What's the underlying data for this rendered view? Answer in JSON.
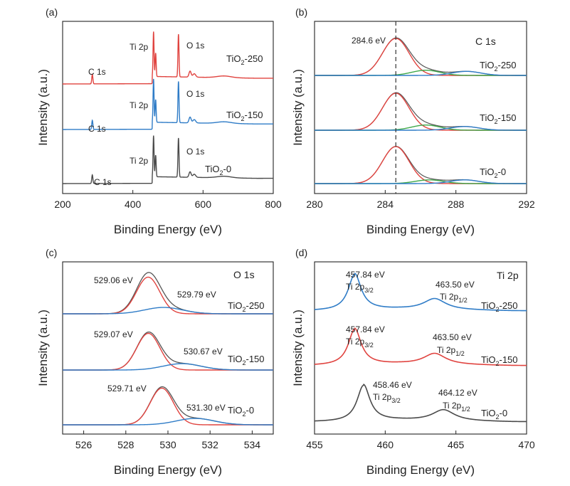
{
  "chart_data": [
    {
      "id": "a",
      "panel_label": "(a)",
      "type": "line",
      "title": "",
      "xlabel": "Binding Energy (eV)",
      "ylabel": "Intensity (a.u.)",
      "xlim": [
        200,
        800
      ],
      "xticks": [
        "200",
        "400",
        "600",
        "800"
      ],
      "series": [
        {
          "name": "TiO2-250",
          "label": "TiO",
          "label_sub": "2",
          "label_rest": "-250",
          "color": "#e0433f",
          "peaks": [
            {
              "label": "C 1s",
              "x": 284.6
            },
            {
              "label": "Ti 2p",
              "x": 459
            },
            {
              "label": "O 1s",
              "x": 530
            }
          ]
        },
        {
          "name": "TiO2-150",
          "label": "TiO",
          "label_sub": "2",
          "label_rest": "-150",
          "color": "#2f7cc7",
          "peaks": [
            {
              "label": "C 1s",
              "x": 284.6
            },
            {
              "label": "Ti 2p",
              "x": 459
            },
            {
              "label": "O 1s",
              "x": 530
            }
          ]
        },
        {
          "name": "TiO2-0",
          "label": "TiO",
          "label_sub": "2",
          "label_rest": "-0",
          "color": "#4a4a4a",
          "peaks": [
            {
              "label": "C 1s",
              "x": 284.6
            },
            {
              "label": "Ti 2p",
              "x": 459
            },
            {
              "label": "O 1s",
              "x": 530
            }
          ]
        }
      ]
    },
    {
      "id": "b",
      "panel_label": "(b)",
      "type": "line",
      "title": "C 1s",
      "xlabel": "Binding Energy (eV)",
      "ylabel": "Intensity (a.u.)",
      "xlim": [
        280,
        292
      ],
      "xticks": [
        "280",
        "284",
        "288",
        "292"
      ],
      "reference_line": {
        "x": 284.6,
        "label": "284.6 eV"
      },
      "series": [
        {
          "name": "TiO2-250",
          "label": "TiO",
          "label_sub": "2",
          "label_rest": "-250",
          "components": [
            {
              "center": 284.6,
              "amp": 1.0,
              "color": "#e0433f"
            },
            {
              "center": 286.3,
              "amp": 0.14,
              "color": "#3fa84a"
            },
            {
              "center": 288.6,
              "amp": 0.11,
              "color": "#2f7cc7"
            }
          ]
        },
        {
          "name": "TiO2-150",
          "label": "TiO",
          "label_sub": "2",
          "label_rest": "-150",
          "components": [
            {
              "center": 284.6,
              "amp": 1.0,
              "color": "#e0433f"
            },
            {
              "center": 286.3,
              "amp": 0.14,
              "color": "#3fa84a"
            },
            {
              "center": 288.5,
              "amp": 0.1,
              "color": "#2f7cc7"
            }
          ]
        },
        {
          "name": "TiO2-0",
          "label": "TiO",
          "label_sub": "2",
          "label_rest": "-0",
          "components": [
            {
              "center": 284.6,
              "amp": 1.0,
              "color": "#e0433f"
            },
            {
              "center": 286.5,
              "amp": 0.1,
              "color": "#3fa84a"
            },
            {
              "center": 288.5,
              "amp": 0.1,
              "color": "#2f7cc7"
            }
          ]
        }
      ]
    },
    {
      "id": "c",
      "panel_label": "(c)",
      "type": "line",
      "title": "O 1s",
      "xlabel": "Binding Energy (eV)",
      "ylabel": "Intensity (a.u.)",
      "xlim": [
        525,
        535
      ],
      "xticks": [
        "526",
        "528",
        "530",
        "532",
        "534"
      ],
      "series": [
        {
          "name": "TiO2-250",
          "label": "TiO",
          "label_sub": "2",
          "label_rest": "-250",
          "main": {
            "center": 529.06,
            "label": "529.06 eV"
          },
          "shoulder": {
            "center": 529.79,
            "label": "529.79 eV"
          }
        },
        {
          "name": "TiO2-150",
          "label": "TiO",
          "label_sub": "2",
          "label_rest": "-150",
          "main": {
            "center": 529.07,
            "label": "529.07 eV"
          },
          "shoulder": {
            "center": 530.67,
            "label": "530.67 eV"
          }
        },
        {
          "name": "TiO2-0",
          "label": "TiO",
          "label_sub": "2",
          "label_rest": "-0",
          "main": {
            "center": 529.71,
            "label": "529.71 eV"
          },
          "shoulder": {
            "center": 531.3,
            "label": "531.30 eV"
          }
        }
      ]
    },
    {
      "id": "d",
      "panel_label": "(d)",
      "type": "line",
      "title": "Ti 2p",
      "xlabel": "Binding Energy (eV)",
      "ylabel": "Intensity (a.u.)",
      "xlim": [
        455,
        470
      ],
      "xticks": [
        "455",
        "460",
        "465",
        "470"
      ],
      "series": [
        {
          "name": "TiO2-250",
          "label": "TiO",
          "label_sub": "2",
          "label_rest": "-250",
          "color": "#2f7cc7",
          "p32": {
            "center": 457.84,
            "value": "457.84 eV",
            "name": "Ti 2p",
            "sub": "3/2"
          },
          "p12": {
            "center": 463.5,
            "value": "463.50 eV",
            "name": "Ti 2p",
            "sub": "1/2"
          }
        },
        {
          "name": "TiO2-150",
          "label": "TiO",
          "label_sub": "2",
          "label_rest": "-150",
          "color": "#e0433f",
          "p32": {
            "center": 457.84,
            "value": "457.84 eV",
            "name": "Ti 2p",
            "sub": "3/2"
          },
          "p12": {
            "center": 463.5,
            "value": "463.50 eV",
            "name": "Ti 2p",
            "sub": "1/2"
          }
        },
        {
          "name": "TiO2-0",
          "label": "TiO",
          "label_sub": "2",
          "label_rest": "-0",
          "color": "#4a4a4a",
          "p32": {
            "center": 458.46,
            "value": "458.46 eV",
            "name": "Ti 2p",
            "sub": "3/2"
          },
          "p12": {
            "center": 464.12,
            "value": "464.12 eV",
            "name": "Ti 2p",
            "sub": "1/2"
          }
        }
      ]
    }
  ]
}
